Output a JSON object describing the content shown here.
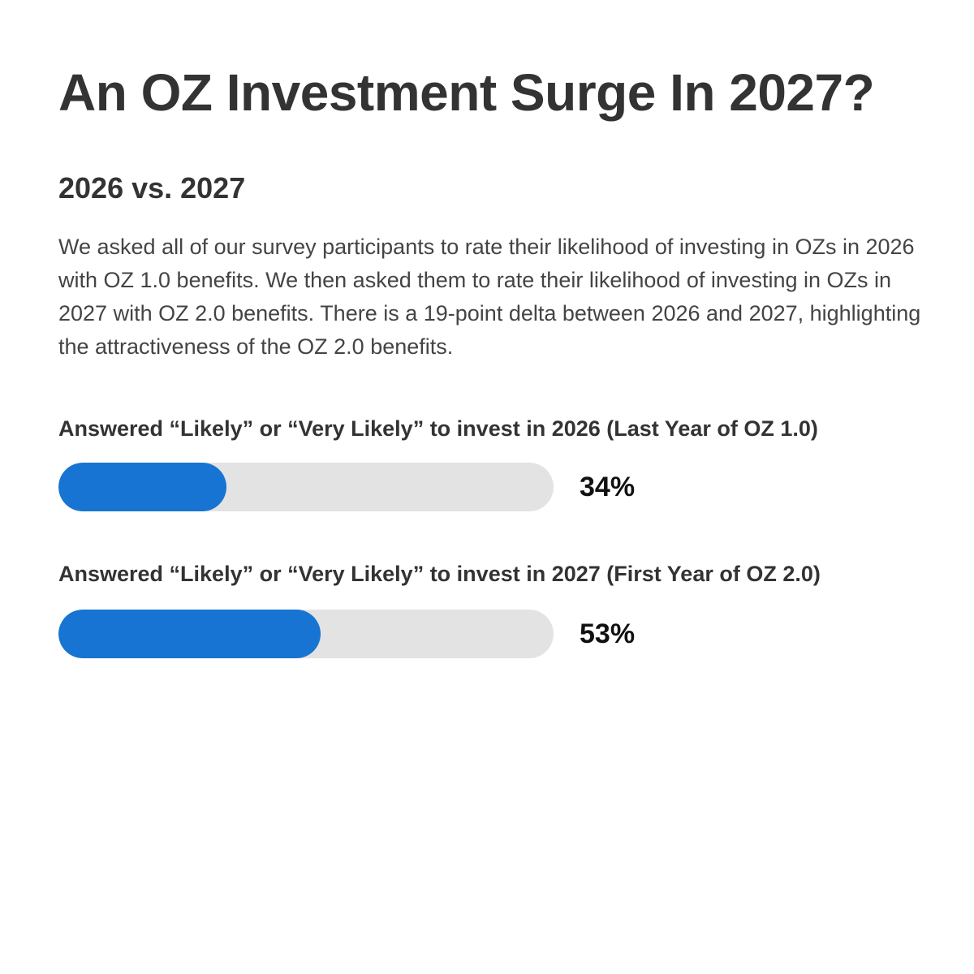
{
  "chart_data": {
    "type": "bar",
    "orientation": "horizontal",
    "title": "An OZ Investment Surge In 2027?",
    "subtitle": "2026 vs. 2027",
    "description": "We asked all of our survey participants to rate their likelihood of investing in OZs in 2026 with OZ 1.0 benefits. We then asked them to rate their likelihood of investing in OZs in 2027 with OZ 2.0 benefits. There is a 19-point delta between 2026 and 2027, highlighting the attractiveness of the OZ 2.0 benefits.",
    "categories": [
      "Answered “Likely” or “Very Likely” to invest in 2026 (Last Year of OZ 1.0)",
      "Answered “Likely” or “Very Likely” to invest in 2027 (First Year of OZ 2.0)"
    ],
    "values": [
      34,
      53
    ],
    "value_labels": [
      "34%",
      "53%"
    ],
    "xlim": [
      0,
      100
    ],
    "grid": false,
    "legend": "none",
    "colors": {
      "fill": "#1874d2",
      "track": "#e3e3e3"
    }
  }
}
